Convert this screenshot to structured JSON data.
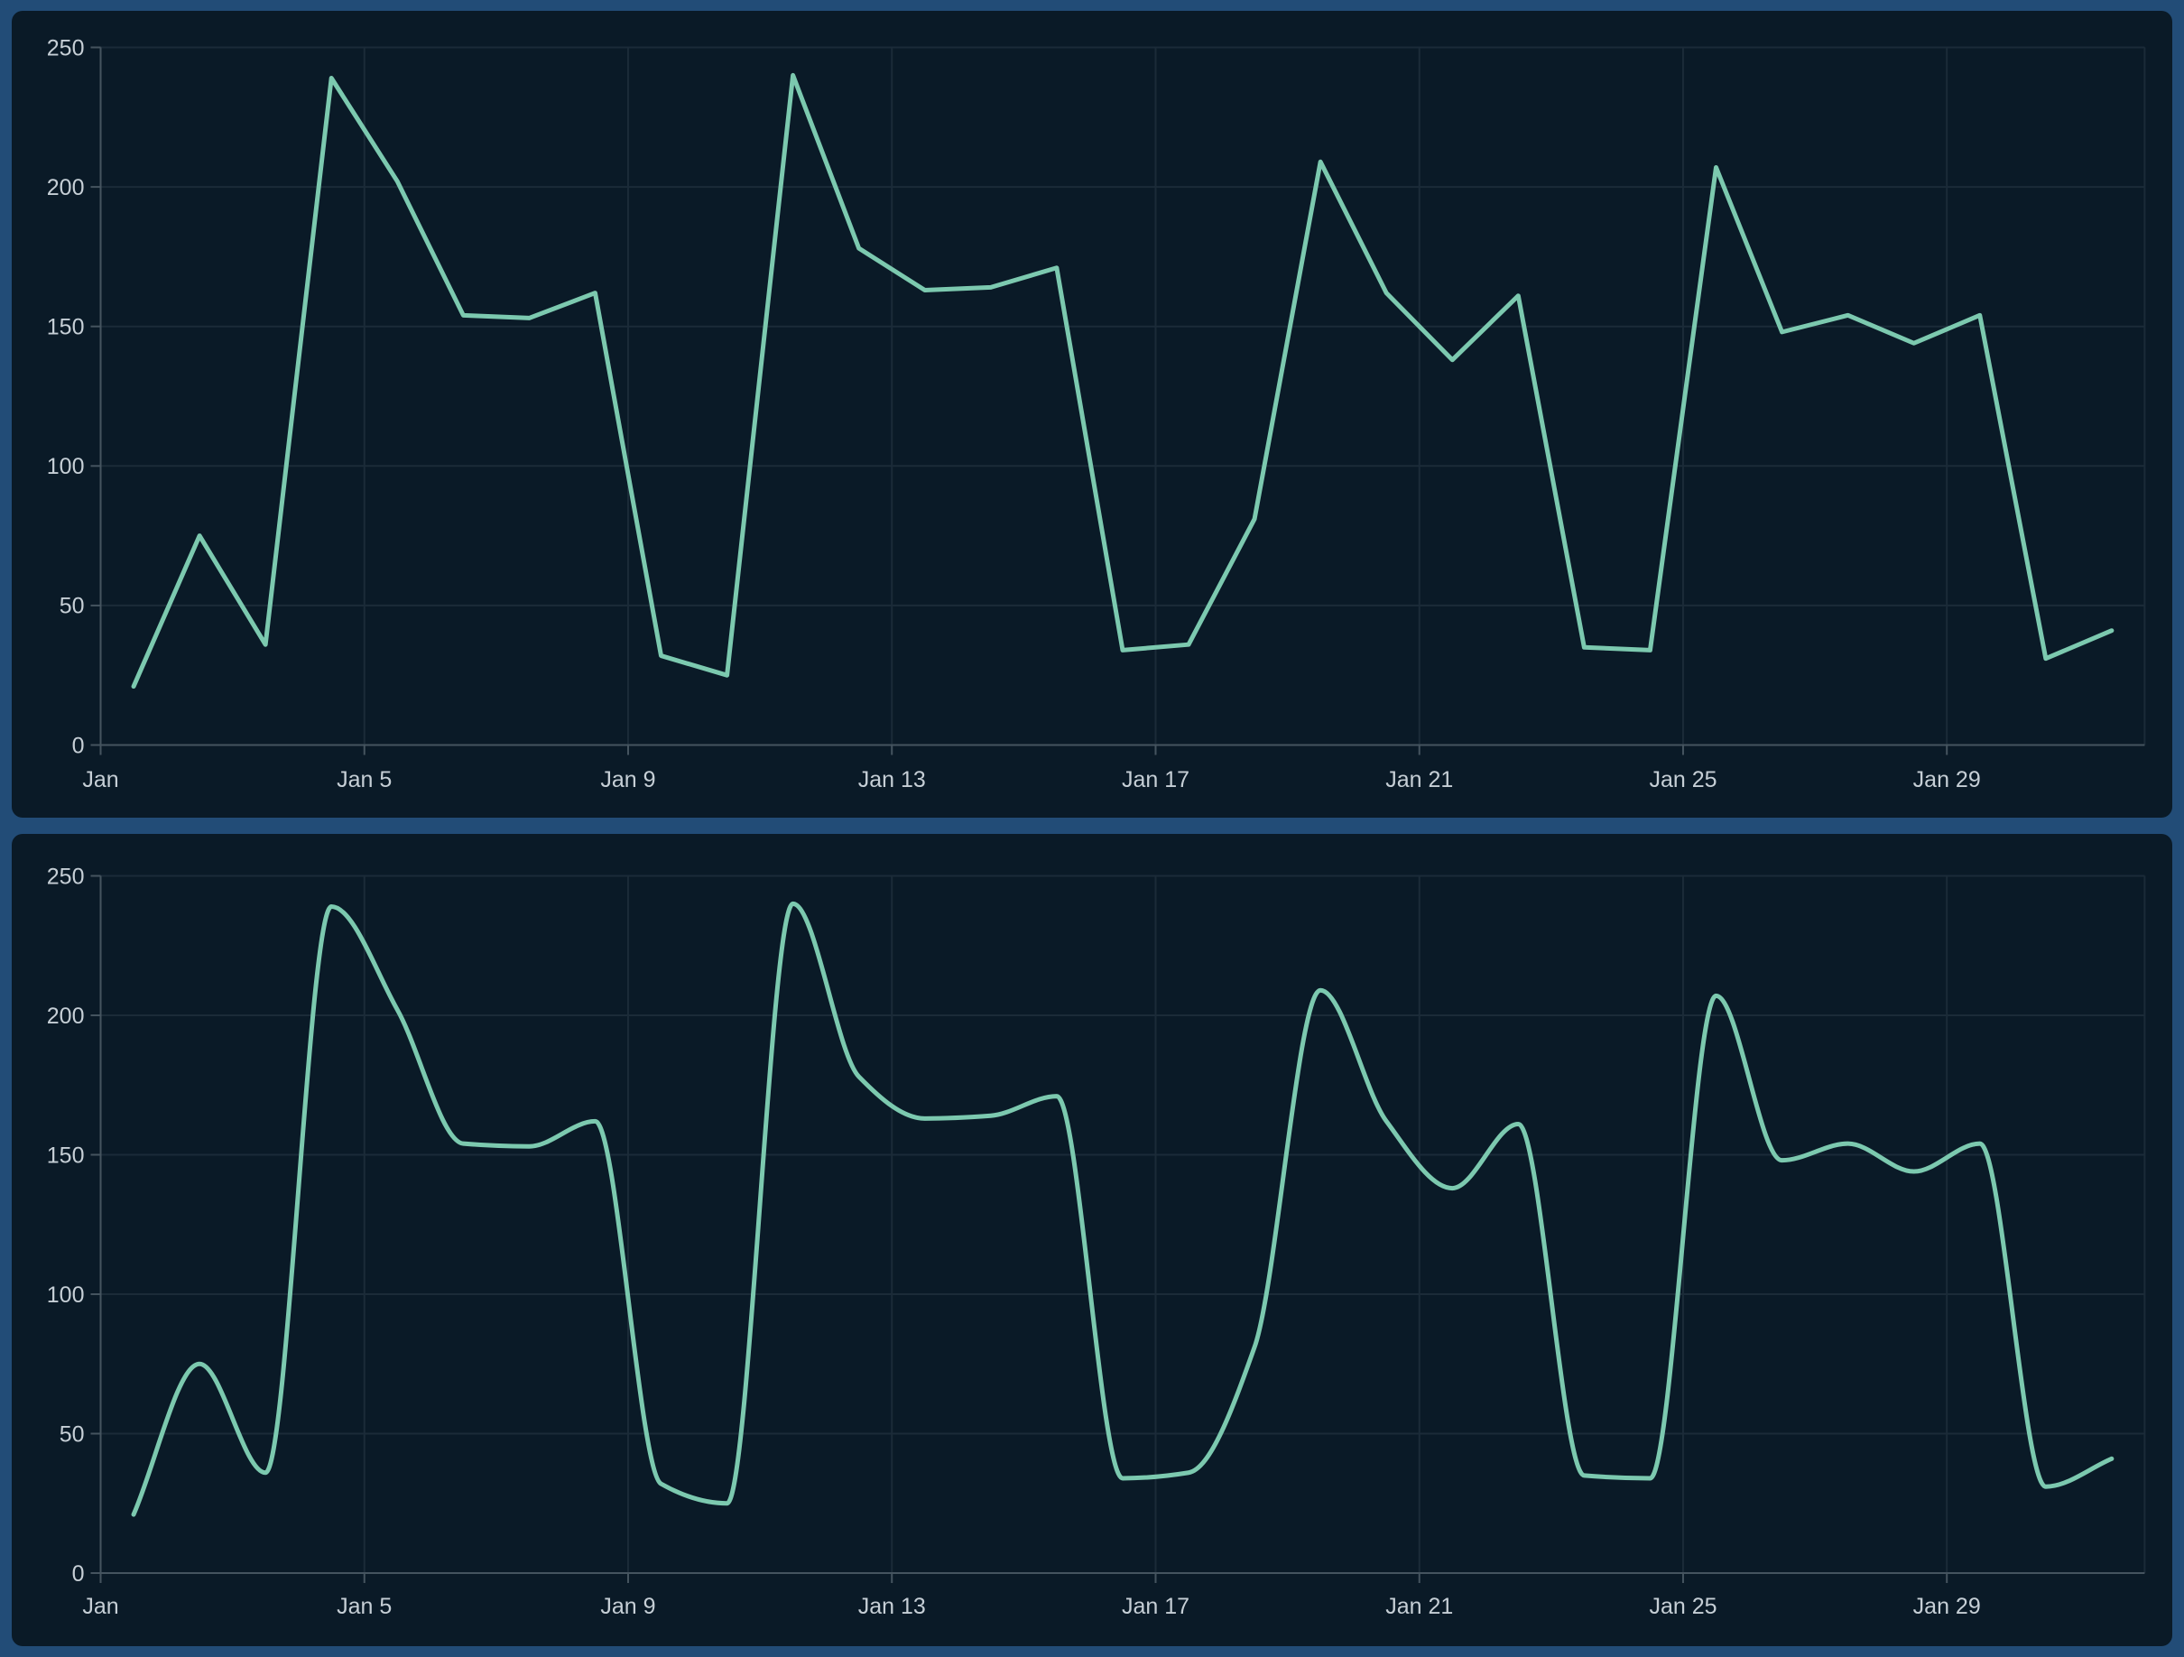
{
  "page": {
    "background": "#224C77",
    "panel_background": "#0A1A27"
  },
  "colors": {
    "line": "#7CC9AF",
    "grid": "#1B2B38",
    "axis": "#45545F",
    "tick_label": "#C6CFD6"
  },
  "axes": {
    "y_tick_labels": [
      "0",
      "50",
      "100",
      "150",
      "200",
      "250"
    ],
    "x_tick_labels": [
      "Jan",
      "Jan 5",
      "Jan 9",
      "Jan 13",
      "Jan 17",
      "Jan 21",
      "Jan 25",
      "Jan 29"
    ],
    "y_max": 250
  },
  "chart_data": [
    {
      "type": "line",
      "name": "daily-values-linear",
      "interpolation": "linear",
      "title": "",
      "xlabel": "",
      "ylabel": "",
      "ylim": [
        0,
        250
      ],
      "yticks": [
        0,
        50,
        100,
        150,
        200,
        250
      ],
      "x_tick_labels_shown": [
        "Jan",
        "Jan 5",
        "Jan 9",
        "Jan 13",
        "Jan 17",
        "Jan 21",
        "Jan 25",
        "Jan 29"
      ],
      "grid": true,
      "legend_position": "none",
      "line_color": "#7CC9AF",
      "x": [
        "Jan 1",
        "Jan 2",
        "Jan 3",
        "Jan 4",
        "Jan 5",
        "Jan 6",
        "Jan 7",
        "Jan 8",
        "Jan 9",
        "Jan 10",
        "Jan 11",
        "Jan 12",
        "Jan 13",
        "Jan 14",
        "Jan 15",
        "Jan 16",
        "Jan 17",
        "Jan 18",
        "Jan 19",
        "Jan 20",
        "Jan 21",
        "Jan 22",
        "Jan 23",
        "Jan 24",
        "Jan 25",
        "Jan 26",
        "Jan 27",
        "Jan 28",
        "Jan 29",
        "Jan 30",
        "Jan 31"
      ],
      "values": [
        21,
        75,
        36,
        239,
        202,
        154,
        153,
        162,
        32,
        25,
        240,
        178,
        163,
        164,
        171,
        34,
        36,
        81,
        209,
        162,
        138,
        161,
        35,
        34,
        207,
        148,
        154,
        144,
        154,
        31,
        41
      ]
    },
    {
      "type": "line",
      "name": "daily-values-smoothed",
      "interpolation": "spline",
      "title": "",
      "xlabel": "",
      "ylabel": "",
      "ylim": [
        0,
        250
      ],
      "yticks": [
        0,
        50,
        100,
        150,
        200,
        250
      ],
      "x_tick_labels_shown": [
        "Jan",
        "Jan 5",
        "Jan 9",
        "Jan 13",
        "Jan 17",
        "Jan 21",
        "Jan 25",
        "Jan 29"
      ],
      "grid": true,
      "legend_position": "none",
      "line_color": "#7CC9AF",
      "x": [
        "Jan 1",
        "Jan 2",
        "Jan 3",
        "Jan 4",
        "Jan 5",
        "Jan 6",
        "Jan 7",
        "Jan 8",
        "Jan 9",
        "Jan 10",
        "Jan 11",
        "Jan 12",
        "Jan 13",
        "Jan 14",
        "Jan 15",
        "Jan 16",
        "Jan 17",
        "Jan 18",
        "Jan 19",
        "Jan 20",
        "Jan 21",
        "Jan 22",
        "Jan 23",
        "Jan 24",
        "Jan 25",
        "Jan 26",
        "Jan 27",
        "Jan 28",
        "Jan 29",
        "Jan 30",
        "Jan 31"
      ],
      "values": [
        21,
        75,
        36,
        239,
        202,
        154,
        153,
        162,
        32,
        25,
        240,
        178,
        163,
        164,
        171,
        34,
        36,
        81,
        209,
        162,
        138,
        161,
        35,
        34,
        207,
        148,
        154,
        144,
        154,
        31,
        41
      ]
    }
  ]
}
